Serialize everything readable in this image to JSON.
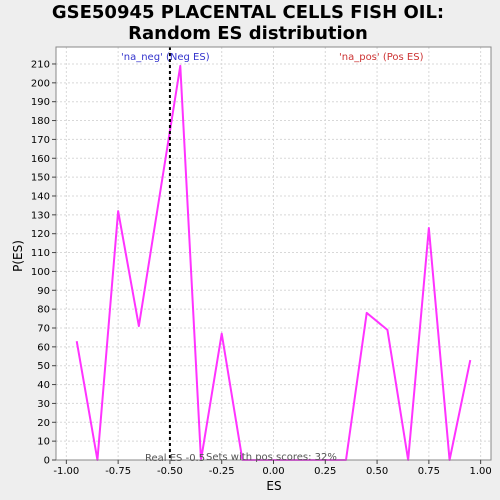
{
  "chart_data": {
    "type": "line",
    "title_lines": [
      "GSE50945 PLACENTAL CELLS FISH OIL:",
      "Random ES distribution"
    ],
    "xlabel": "ES",
    "ylabel": "P(ES)",
    "xlim": [
      -1.05,
      1.05
    ],
    "ylim": [
      0,
      219
    ],
    "x_ticks": [
      -1.0,
      -0.75,
      -0.5,
      -0.25,
      0.0,
      0.25,
      0.5,
      0.75,
      1.0
    ],
    "x_tick_labels": [
      "-1.00",
      "-0.75",
      "-0.50",
      "-0.25",
      "0.00",
      "0.25",
      "0.50",
      "0.75",
      "1.00"
    ],
    "y_ticks": [
      0,
      10,
      20,
      30,
      40,
      50,
      60,
      70,
      80,
      90,
      100,
      110,
      120,
      130,
      140,
      150,
      160,
      170,
      180,
      190,
      200,
      210
    ],
    "grid": true,
    "series": [
      {
        "color": "#ff33ff",
        "x": [
          -0.95,
          -0.85,
          -0.75,
          -0.65,
          -0.55,
          -0.45,
          -0.35,
          -0.25,
          -0.15,
          -0.05,
          0.05,
          0.15,
          0.25,
          0.35,
          0.45,
          0.55,
          0.65,
          0.75,
          0.85,
          0.95
        ],
        "y": [
          63,
          0,
          132,
          71,
          140,
          209,
          0,
          67,
          0,
          0,
          0,
          0,
          0,
          0,
          78,
          69,
          0,
          123,
          0,
          53
        ]
      }
    ],
    "real_es": {
      "value": -0.5,
      "label": "Real ES -0.5"
    },
    "annotations": {
      "neg_label": "'na_neg' (Neg ES)",
      "neg_color": "#3333cc",
      "pos_label": "'na_pos' (Pos ES)",
      "pos_color": "#cc3333",
      "sets_text": "Sets with pos scores: 32%"
    }
  }
}
